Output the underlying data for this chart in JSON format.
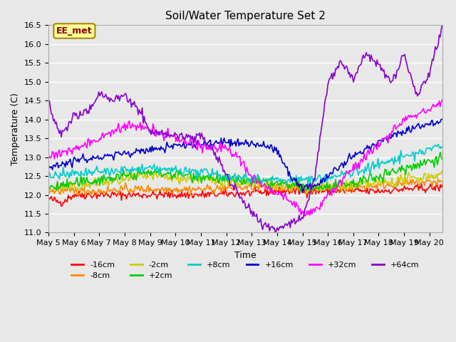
{
  "title": "Soil/Water Temperature Set 2",
  "xlabel": "Time",
  "ylabel": "Temperature (C)",
  "ylim": [
    11.0,
    16.5
  ],
  "xlim": [
    0,
    15.5
  ],
  "background_color": "#e8e8e8",
  "plot_bg_color": "#e8e8e8",
  "grid_color": "#ffffff",
  "annotation_text": "EE_met",
  "annotation_box_color": "#ffff99",
  "annotation_border_color": "#aa8800",
  "x_ticks": [
    0,
    1,
    2,
    3,
    4,
    5,
    6,
    7,
    8,
    9,
    10,
    11,
    12,
    13,
    14,
    15
  ],
  "x_tick_labels": [
    "May 5",
    "May 6",
    "May 7",
    "May 8",
    "May 9",
    "May 10",
    "May 11",
    "May 12",
    "May 13",
    "May 14",
    "May 15",
    "May 16",
    "May 17",
    "May 18",
    "May 19",
    "May 20"
  ],
  "series": [
    {
      "label": "-16cm",
      "color": "#ff0000"
    },
    {
      "label": "-8cm",
      "color": "#ff8800"
    },
    {
      "label": "-2cm",
      "color": "#cccc00"
    },
    {
      "label": "+2cm",
      "color": "#00cc00"
    },
    {
      "label": "+8cm",
      "color": "#00cccc"
    },
    {
      "label": "+16cm",
      "color": "#0000cc"
    },
    {
      "label": "+32cm",
      "color": "#ff00ff"
    },
    {
      "label": "+64cm",
      "color": "#8800cc"
    }
  ]
}
